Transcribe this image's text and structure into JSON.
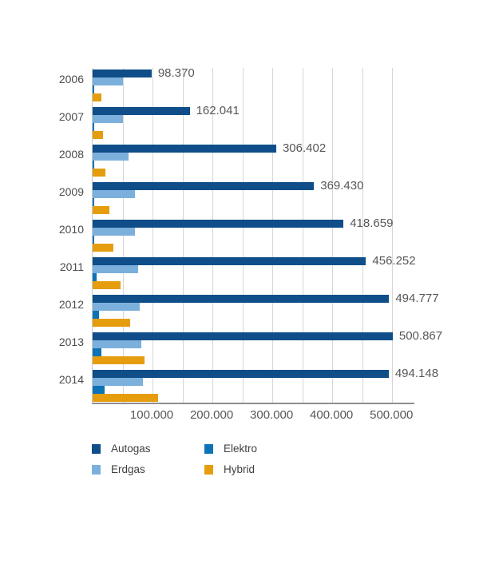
{
  "chart_data": {
    "type": "bar",
    "orientation": "horizontal",
    "title": "",
    "xlabel": "",
    "ylabel": "",
    "grid": "vertical",
    "legend_position": "bottom",
    "categories": [
      "2006",
      "2007",
      "2008",
      "2009",
      "2010",
      "2011",
      "2012",
      "2013",
      "2014"
    ],
    "series": [
      {
        "name": "Autogas",
        "color": "#0f4e89",
        "values": [
          98370,
          162041,
          306402,
          369430,
          418659,
          456252,
          494777,
          500867,
          494148
        ],
        "value_labels": [
          "98.370",
          "162.041",
          "306.402",
          "369.430",
          "418.659",
          "456.252",
          "494.777",
          "500.867",
          "494.148"
        ]
      },
      {
        "name": "Erdgas",
        "color": "#7cb0dc",
        "values": [
          50000,
          51000,
          60000,
          70000,
          71000,
          76000,
          79000,
          81000,
          84000
        ],
        "value_labels": []
      },
      {
        "name": "Elektro",
        "color": "#0e73b6",
        "values": [
          2500,
          2500,
          2500,
          2500,
          3000,
          7000,
          10000,
          14000,
          20000
        ],
        "value_labels": []
      },
      {
        "name": "Hybrid",
        "color": "#e59d0e",
        "values": [
          14000,
          17300,
          21000,
          28000,
          34000,
          47000,
          63000,
          86000,
          109000
        ],
        "value_labels": []
      }
    ],
    "x_ticks": [
      {
        "value": 100000,
        "label": "100.000"
      },
      {
        "value": 200000,
        "label": "200.000"
      },
      {
        "value": 300000,
        "label": "300.000"
      },
      {
        "value": 400000,
        "label": "400.000"
      },
      {
        "value": 500000,
        "label": "500.000"
      }
    ],
    "x_gridline_step": 50000,
    "x_gridline_max": 500000,
    "xlim": [
      0,
      537000
    ],
    "note_only_first_series_labeled": "Value labels are shown only for the Autogas series"
  }
}
